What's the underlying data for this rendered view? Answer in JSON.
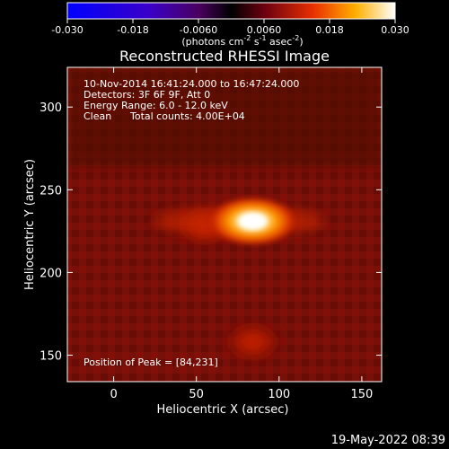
{
  "chart_data": {
    "type": "heatmap",
    "title": "Reconstructed RHESSI Image",
    "xlabel": "Heliocentric X (arcsec)",
    "ylabel": "Heliocentric Y (arcsec)",
    "xlim": [
      -28,
      162
    ],
    "ylim": [
      134,
      324
    ],
    "xticks": [
      0,
      50,
      100,
      150
    ],
    "yticks": [
      150,
      200,
      250,
      300
    ],
    "colorbar": {
      "ticks": [
        "-0.030",
        "-0.018",
        "-0.0060",
        "0.0060",
        "0.018",
        "0.030"
      ],
      "range": [
        -0.03,
        0.03
      ],
      "units_main": "(photons cm",
      "units_exp1": "-2",
      "units_mid": " s",
      "units_exp2": "-1",
      "units_end": " asec",
      "units_exp3": "-2",
      "units_close": ")"
    },
    "info_lines": [
      "10-Nov-2014 16:41:24.000 to 16:47:24.000",
      "Detectors: 3F 6F 9F, Att 0",
      "Energy Range: 6.0 - 12.0 keV"
    ],
    "clean_label": "Clean",
    "total_counts": "Total counts: 4.00E+04",
    "peak_text": "Position of Peak = [84,231]",
    "peak": {
      "x": 84,
      "y": 231,
      "value": 0.03
    },
    "secondary_sources": [
      {
        "x": 84,
        "y": 158,
        "value": 0.012
      },
      {
        "x": 55,
        "y": 228,
        "value": 0.013
      }
    ]
  },
  "footer": {
    "timestamp": "19-May-2022 08:39"
  }
}
